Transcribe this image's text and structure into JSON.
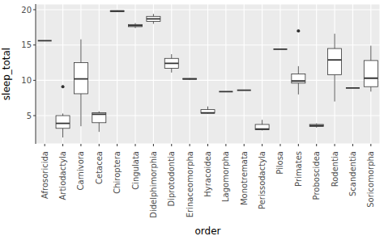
{
  "chart_data": {
    "type": "box",
    "x_label": "order",
    "y_label": "sleep_total",
    "categories": [
      "Afrosoricida",
      "Artiodactyla",
      "Carnivora",
      "Cetacea",
      "Chiroptera",
      "Cingulata",
      "Didelphimorphia",
      "Diprotodontia",
      "Erinaceomorpha",
      "Hyracoidea",
      "Lagomorpha",
      "Monotremata",
      "Perissodactyla",
      "Pilosa",
      "Primates",
      "Proboscidea",
      "Rodentia",
      "Scandentia",
      "Soricomorpha"
    ],
    "boxes": [
      {
        "min": 15.6,
        "q1": 15.6,
        "median": 15.6,
        "q3": 15.6,
        "max": 15.6,
        "outliers": []
      },
      {
        "min": 1.9,
        "q1": 3.2,
        "median": 3.9,
        "q3": 5.0,
        "max": 5.3,
        "outliers": [
          9.1
        ]
      },
      {
        "min": 3.5,
        "q1": 8.1,
        "median": 10.2,
        "q3": 12.5,
        "max": 15.8,
        "outliers": []
      },
      {
        "min": 2.7,
        "q1": 4.0,
        "median": 5.2,
        "q3": 5.4,
        "max": 5.6,
        "outliers": []
      },
      {
        "min": 19.7,
        "q1": 19.75,
        "median": 19.8,
        "q3": 19.85,
        "max": 19.9,
        "outliers": []
      },
      {
        "min": 17.4,
        "q1": 17.6,
        "median": 17.75,
        "q3": 17.9,
        "max": 18.1,
        "outliers": []
      },
      {
        "min": 18.0,
        "q1": 18.35,
        "median": 18.7,
        "q3": 19.05,
        "max": 19.4,
        "outliers": []
      },
      {
        "min": 11.1,
        "q1": 11.7,
        "median": 12.4,
        "q3": 13.1,
        "max": 13.7,
        "outliers": []
      },
      {
        "min": 10.1,
        "q1": 10.15,
        "median": 10.2,
        "q3": 10.25,
        "max": 10.3,
        "outliers": []
      },
      {
        "min": 5.3,
        "q1": 5.35,
        "median": 5.4,
        "q3": 5.85,
        "max": 6.3,
        "outliers": []
      },
      {
        "min": 8.4,
        "q1": 8.4,
        "median": 8.4,
        "q3": 8.4,
        "max": 8.4,
        "outliers": []
      },
      {
        "min": 8.6,
        "q1": 8.6,
        "median": 8.6,
        "q3": 8.6,
        "max": 8.6,
        "outliers": []
      },
      {
        "min": 2.9,
        "q1": 3.0,
        "median": 3.1,
        "q3": 3.75,
        "max": 4.4,
        "outliers": []
      },
      {
        "min": 14.4,
        "q1": 14.4,
        "median": 14.4,
        "q3": 14.4,
        "max": 14.4,
        "outliers": []
      },
      {
        "min": 8.0,
        "q1": 9.6,
        "median": 9.9,
        "q3": 10.9,
        "max": 12.0,
        "outliers": [
          17.0
        ]
      },
      {
        "min": 3.3,
        "q1": 3.45,
        "median": 3.6,
        "q3": 3.75,
        "max": 3.9,
        "outliers": []
      },
      {
        "min": 7.0,
        "q1": 10.8,
        "median": 12.9,
        "q3": 14.5,
        "max": 16.6,
        "outliers": []
      },
      {
        "min": 8.9,
        "q1": 8.9,
        "median": 8.9,
        "q3": 8.9,
        "max": 8.9,
        "outliers": []
      },
      {
        "min": 8.4,
        "q1": 9.1,
        "median": 10.3,
        "q3": 12.8,
        "max": 14.9,
        "outliers": []
      }
    ],
    "ylim": [
      1.0,
      20.8
    ],
    "yticks": [
      5,
      10,
      15,
      20
    ],
    "grid": true
  }
}
